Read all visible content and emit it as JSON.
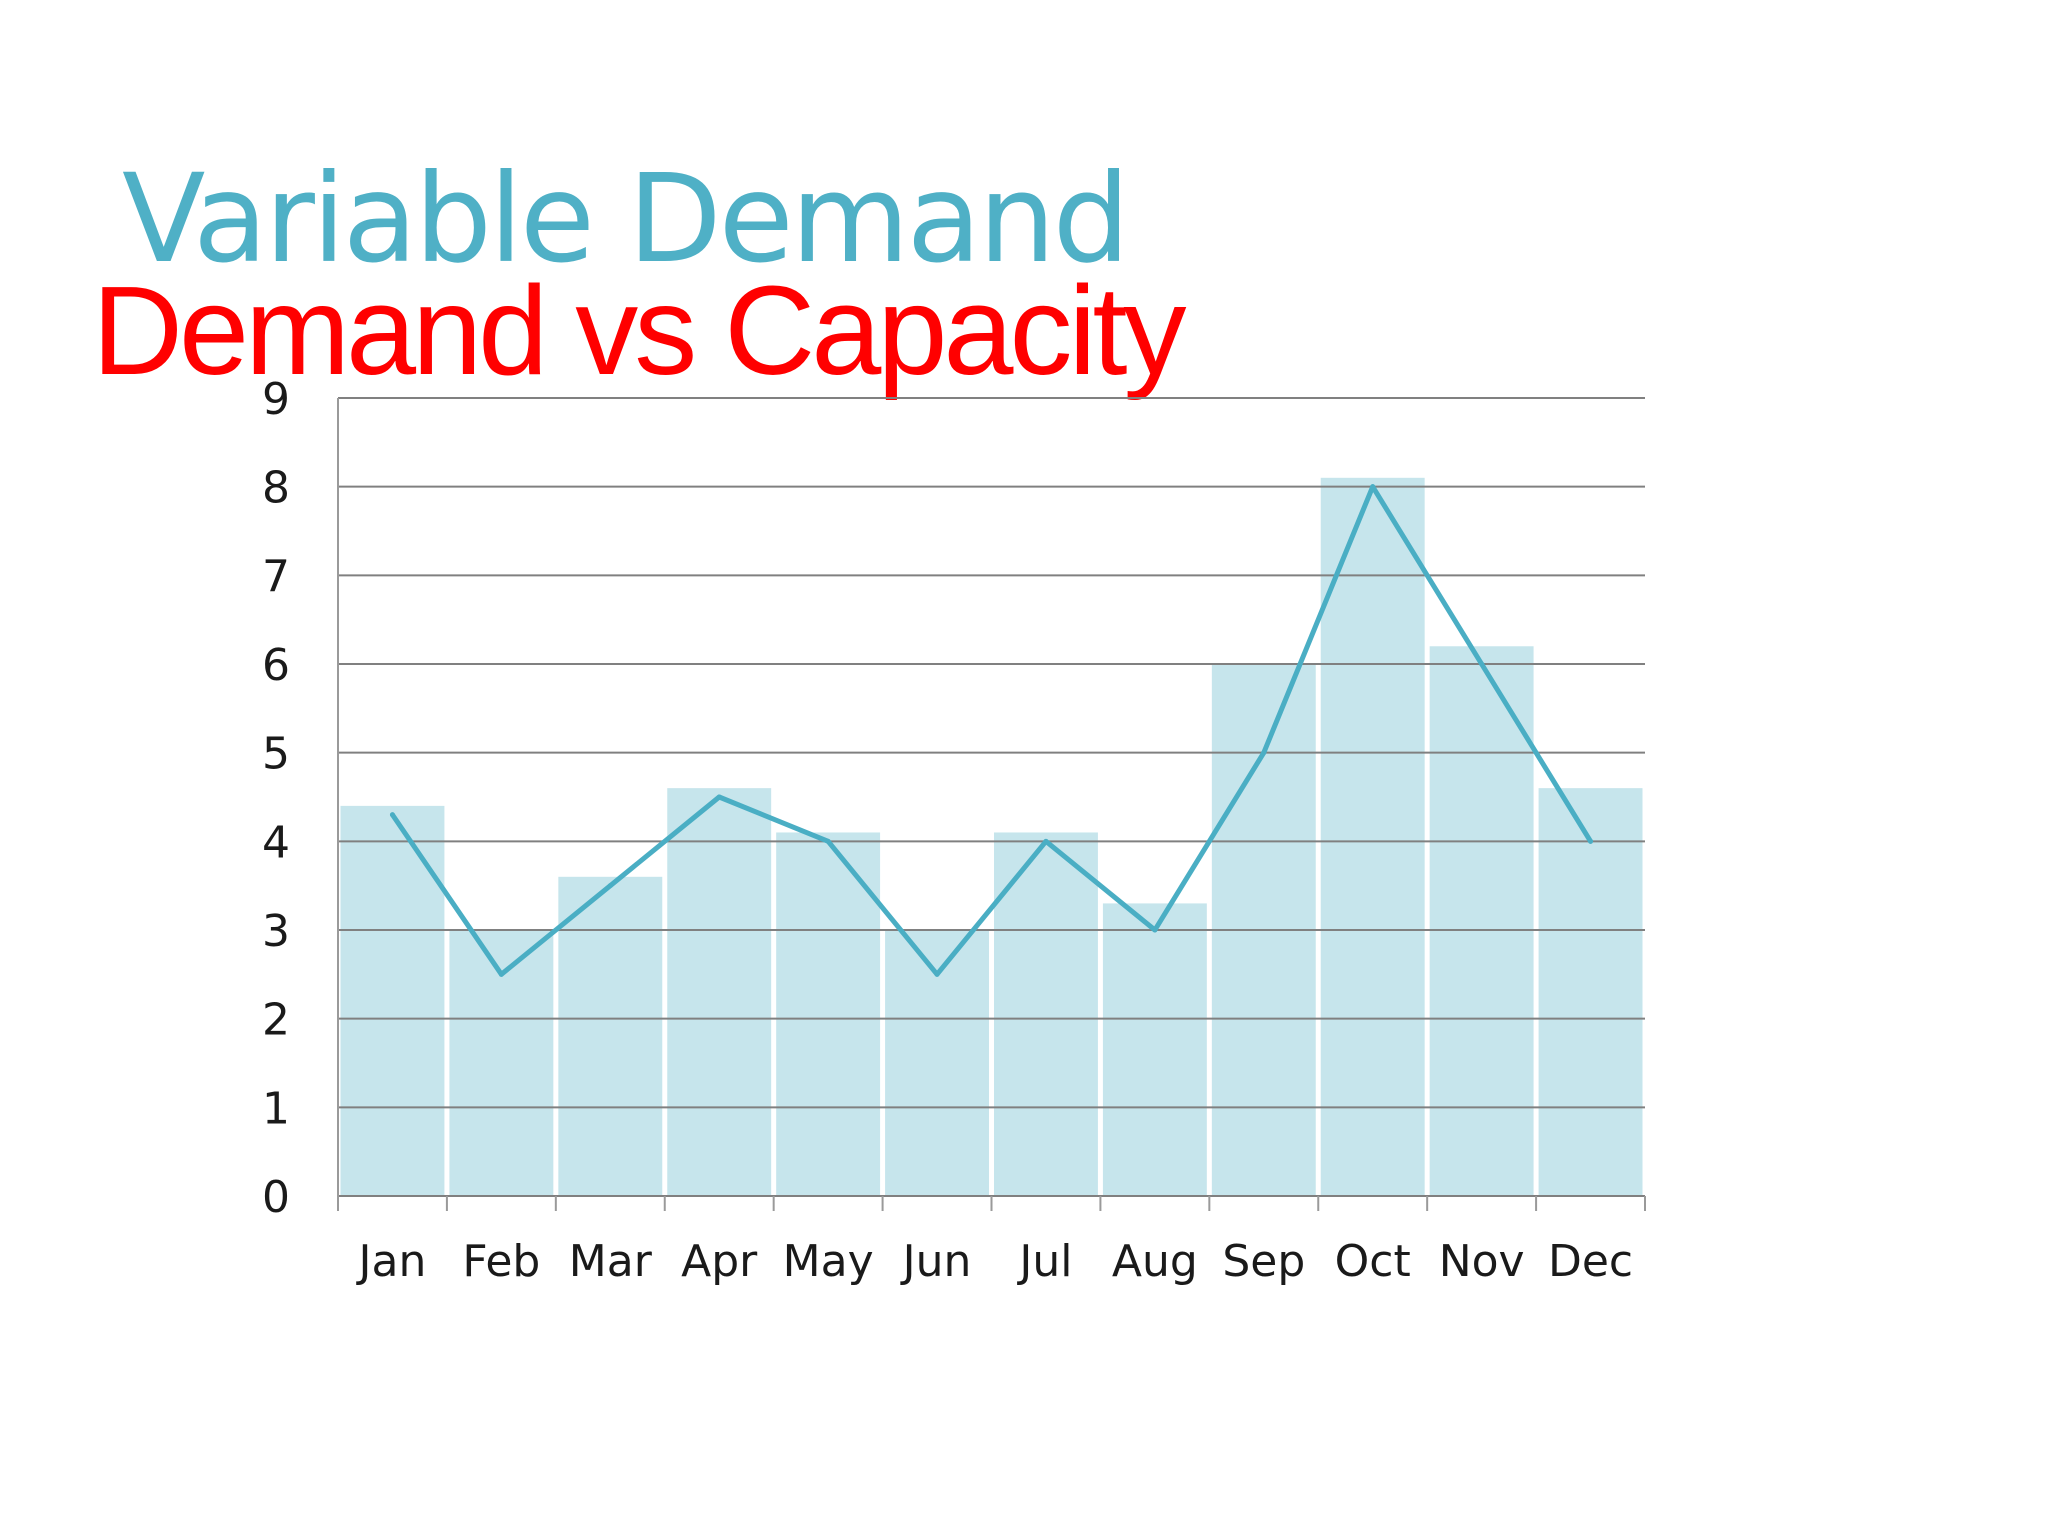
{
  "slide": {
    "title": "Variable Demand",
    "subtitle": "Demand vs Capacity"
  },
  "colors": {
    "title": "#4fb0c6",
    "subtitle": "#ff0000",
    "bars": "#c6e5ec",
    "line": "#4aaec4",
    "grid": "#808080",
    "axis": "#9a9a9a",
    "text": "#1a1a1a"
  },
  "chart_data": {
    "type": "bar",
    "title": "",
    "xlabel": "",
    "ylabel": "",
    "categories": [
      "Jan",
      "Feb",
      "Mar",
      "Apr",
      "May",
      "Jun",
      "Jul",
      "Aug",
      "Sep",
      "Oct",
      "Nov",
      "Dec"
    ],
    "series": [
      {
        "type": "bar",
        "values": [
          4.4,
          3.0,
          3.6,
          4.6,
          4.1,
          3.0,
          4.1,
          3.3,
          6.0,
          8.1,
          6.2,
          4.6
        ]
      },
      {
        "type": "line",
        "values": [
          4.3,
          2.5,
          3.5,
          4.5,
          4.0,
          2.5,
          4.0,
          3.0,
          5.0,
          8.0,
          6.0,
          4.0
        ]
      }
    ],
    "ylim": [
      0,
      9
    ],
    "yticks": [
      0,
      1,
      2,
      3,
      4,
      5,
      6,
      7,
      8,
      9
    ],
    "grid": true,
    "legend": "none"
  }
}
